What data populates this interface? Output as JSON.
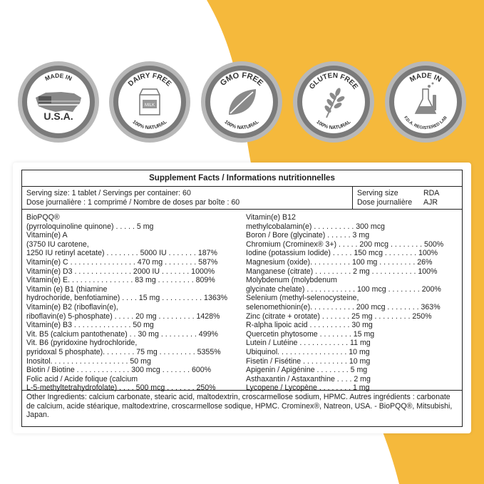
{
  "colors": {
    "accent": "#F5B93C",
    "badge_gray": "#7A7A7A",
    "badge_ring": "#B8B8B8"
  },
  "badges": [
    {
      "top": "MADE IN",
      "main": "U.S.A.",
      "bottom": "",
      "icon": "usa-flag-icon"
    },
    {
      "top": "DAIRY FREE",
      "main": "",
      "bottom": "100% NATURAL",
      "icon": "milk-carton-icon",
      "icon_text": "MILK"
    },
    {
      "top": "GMO FREE",
      "main": "",
      "bottom": "100% NATURAL",
      "icon": "leaf-icon"
    },
    {
      "top": "GLUTEN FREE",
      "main": "",
      "bottom": "100% NATURAL",
      "icon": "wheat-icon"
    },
    {
      "top": "MADE IN",
      "main": "",
      "bottom": "F.D.A. REGISTERED LAB",
      "icon": "lab-flask-icon"
    }
  ],
  "facts": {
    "title": "Supplement Facts / Informations nutritionnelles",
    "serving_en": "Serving size: 1 tablet / Servings per container: 60",
    "serving_fr": "Dose journalière : 1 comprimé / Nombre de doses par boîte : 60",
    "serving_size_label": "Serving size",
    "rda_label": "RDA",
    "dose_label": "Dose journalière",
    "ajr_label": "AJR",
    "left_lines": [
      "BioPQQ®",
      "(pyrroloquinoline quinone) . . . . . 5 mg",
      "Vitamin(e) A",
      "(3750 IU carotene,",
      "1250 IU retinyl acetate) . . . . . . . . 5000 IU . . . . . . . 187%",
      "Vitamin(e) C . . . . . . . . . . . . . . . . 470 mg . . . . . . . . 587%",
      "Vitamin(e) D3 . . . . . . . . . . . . . . 2000 IU . . . . . . . 1000%",
      "Vitamin(e) E. . . . . . . . . . . . . . . . 83 mg . . . . . . . . . 809%",
      "Vitamin (e) B1 (thiamine",
      "hydrochoride, benfotiamine) . . . . 15 mg . . . . . . . . . . 1363%",
      "Vitamin(e) B2 (riboflavin(e),",
      "riboflavin(e) 5-phosphate) . . . . . 20 mg . . . . . . . . . 1428%",
      "Vitamin(e) B3 . . . . . . . . . . . . . . 50 mg",
      "Vit. B5 (calcium pantothenate) . . 30 mg . . . . . . . . . 499%",
      "Vit. B6 (pyridoxine hydrochloride,",
      "pyridoxal 5 phosphate). . . . . . . . 75 mg . . . . . . . . . 5355%",
      "Inositol. . . . . . . . . . . . . . . . . . . 50 mg",
      "Biotin / Biotine . . . . . . . . . . . . . 300 mcg . . . . . . . 600%",
      "Folic acid / Acide folique (calcium",
      "L-5-methyltetrahydrofolate) . . . . 500 mcg . . . . . . . 250%"
    ],
    "right_lines": [
      "Vitamin(e) B12",
      "methylcobalamin(e) . . . . . . . . . . 300 mcg",
      "Boron / Bore (glycinate) . . . . . . 3 mg",
      "Chromium (Crominex® 3+) . . . . . 200 mcg . . . . . . . . 500%",
      "Iodine (potassium Iodide) . . . . . 150 mcg . . . . . . . . 100%",
      "Magnesium (oxide). . . . . . . . . . 100 mg . . . . . . . . . 26%",
      "Manganese (citrate) . . . . . . . . . 2 mg . . . . . . . . . . . 100%",
      "Molybdenum (molybdenum",
      "glycinate chelate) . . . . . . . . . . . . 100 mcg . . . . . . . . 200%",
      "Selenium (methyl-selenocysteine,",
      "selenomethionin(e). . . . . . . . . . . 200 mcg . . . . . . . . 363%",
      "Zinc (citrate + orotate) . . . . . . . 25 mg . . . . . . . . . 250%",
      "R-alpha lipoic acid . . . . . . . . . . 30 mg",
      "Quercetin phytosome . . . . . . . . 15 mg",
      "Lutein / Lutéine . . . . . . . . . . . . 11 mg",
      "Ubiquinol. . . . . . . . . . . . . . . . . 10 mg",
      "Fisetin / Fisétine . . . . . . . . . . . 10 mg",
      "Apigenin / Apigénine . . . . . . . . 5 mg",
      "Asthaxantin / Astaxanthine . . . . 2 mg",
      "Lycopene / Lycopène . . . . . . . . 1 mg"
    ],
    "other_ingredients": "Other Ingredients: calcium carbonate, stearic acid, maltodextrin, croscarmellose sodium, HPMC. Autres ingrédients : carbonate de calcium, acide stéarique, maltodextrine, croscarmellose sodique, HPMC. Crominex®, Natreon, USA. - BioPQQ®, Mitsubishi, Japan."
  }
}
